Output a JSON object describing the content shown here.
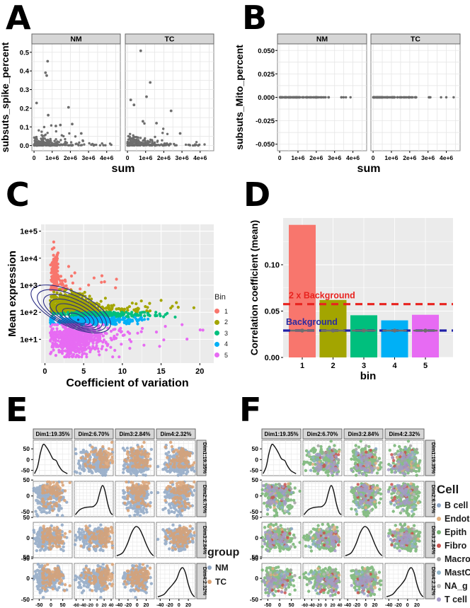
{
  "panels": {
    "A": {
      "letter": "A"
    },
    "B": {
      "letter": "B"
    },
    "C": {
      "letter": "C"
    },
    "D": {
      "letter": "D"
    },
    "E": {
      "letter": "E"
    },
    "F": {
      "letter": "F"
    }
  },
  "chart_data": {
    "A": {
      "type": "scatter",
      "facets": [
        "NM",
        "TC"
      ],
      "xlabel": "sum",
      "ylabel": "subsuts_spike_percent",
      "x_ticks": {
        "values": [
          0,
          1000000,
          2000000,
          3000000,
          4000000
        ],
        "labels": [
          "0",
          "1e+6",
          "2e+6",
          "3e+6",
          "4e+6"
        ]
      },
      "x_range": [
        -120000,
        4750000
      ],
      "y_ticks": {
        "values": [
          0,
          0.1,
          0.2,
          0.3,
          0.4,
          0.5
        ],
        "labels": [
          "0.0",
          "0.1",
          "0.2",
          "0.3",
          "0.4",
          "0.5"
        ]
      },
      "y_range": [
        -0.028,
        0.545
      ],
      "point_color": "#4a4a4a",
      "outliers": {
        "NM": [
          [
            750000,
            0.452
          ],
          [
            630000,
            0.39
          ],
          [
            700000,
            0.375
          ],
          [
            140000,
            0.228
          ],
          [
            1900000,
            0.205
          ],
          [
            780000,
            0.163
          ],
          [
            2100000,
            0.115
          ],
          [
            1450000,
            0.11
          ],
          [
            2600000,
            0.065
          ],
          [
            1200000,
            0.105
          ]
        ],
        "TC": [
          [
            730000,
            0.508
          ],
          [
            1250000,
            0.338
          ],
          [
            1050000,
            0.262
          ],
          [
            180000,
            0.245
          ],
          [
            360000,
            0.218
          ],
          [
            2400000,
            0.186
          ],
          [
            850000,
            0.13
          ],
          [
            1600000,
            0.12
          ],
          [
            2900000,
            0.065
          ]
        ]
      },
      "gen": {
        "n": 150,
        "seeds": {
          "NM": 11,
          "TC": 22
        },
        "x_scale": 900000,
        "x_max": 4400000,
        "y_exp": 0.02,
        "base_n": 80
      }
    },
    "B": {
      "type": "scatter",
      "facets": [
        "NM",
        "TC"
      ],
      "xlabel": "sum",
      "ylabel": "subsuts_Mito_percent",
      "x_ticks": {
        "values": [
          0,
          1000000,
          2000000,
          3000000,
          4000000
        ],
        "labels": [
          "0",
          "1e+6",
          "2e+6",
          "3e+6",
          "4e+6"
        ]
      },
      "x_range": [
        -120000,
        4750000
      ],
      "y_ticks": {
        "values": [
          0.05,
          0.025,
          0,
          -0.025,
          -0.05
        ],
        "labels": [
          "0.050",
          "0.025",
          "0.000",
          "-0.025",
          "-0.050"
        ]
      },
      "y_range": [
        -0.057,
        0.057
      ],
      "point_color": "#4a4a4a",
      "note": "all points lie at y = 0.000",
      "gen": {
        "n": 95,
        "seeds": {
          "NM": 33,
          "TC": 44
        },
        "x_scale": 1100000,
        "x_max": 4400000
      }
    },
    "C": {
      "type": "scatter",
      "xlabel": "Coefficient of variation",
      "ylabel": "Mean expression",
      "x_ticks": {
        "values": [
          0,
          5,
          10,
          15,
          20
        ],
        "labels": [
          "0",
          "5",
          "10",
          "15",
          "20"
        ]
      },
      "x_range": [
        -0.5,
        21.8
      ],
      "y_ticks": {
        "logs": [
          1,
          2,
          3,
          4,
          5
        ],
        "labels": [
          "1e+1",
          "1e+2",
          "1e+3",
          "1e+4",
          "1e+5"
        ]
      },
      "y_log_range": [
        0.12,
        5.25
      ],
      "legend": {
        "title": "Bin"
      },
      "bins": [
        {
          "name": "1",
          "color": "#F8766D",
          "seed": 101,
          "comps": [
            [
              150,
              1.25,
              0.25,
              3.35,
              0.45
            ],
            [
              25,
              2.2,
              0.8,
              3.0,
              0.18
            ],
            [
              12,
              5.5,
              2.2,
              3.15,
              0.25
            ]
          ],
          "ly_clip": [
            2.84,
            4.95
          ]
        },
        {
          "name": "2",
          "color": "#A3A500",
          "seed": 102,
          "comps": [
            [
              330,
              2.8,
              1.1,
              2.35,
              0.2
            ],
            [
              220,
              4.5,
              1.6,
              2.15,
              0.12
            ],
            [
              55,
              8.0,
              3.0,
              2.1,
              0.1
            ],
            [
              12,
              14.0,
              3.0,
              2.2,
              0.15
            ]
          ],
          "ly_clip": [
            2.0,
            2.84
          ]
        },
        {
          "name": "3",
          "color": "#00BF7D",
          "seed": 103,
          "comps": [
            [
              280,
              6.5,
              2.4,
              1.91,
              0.05
            ],
            [
              40,
              12.0,
              3.0,
              1.92,
              0.05
            ]
          ],
          "ly_clip": [
            1.82,
            2.0
          ]
        },
        {
          "name": "4",
          "color": "#00B0F6",
          "seed": 104,
          "comps": [
            [
              320,
              5.2,
              2.2,
              1.68,
              0.07
            ],
            [
              35,
              10.5,
              2.0,
              1.7,
              0.06
            ]
          ],
          "ly_clip": [
            1.55,
            1.82
          ]
        },
        {
          "name": "5",
          "color": "#E76BF3",
          "seed": 105,
          "comps": [
            [
              560,
              3.6,
              1.7,
              1.0,
              0.3
            ],
            [
              80,
              7.5,
              2.5,
              1.1,
              0.25
            ],
            [
              12,
              14.0,
              4.0,
              1.0,
              0.3
            ]
          ],
          "ly_clip": [
            0.35,
            1.54
          ]
        }
      ],
      "contours": {
        "color": "#2b2d84",
        "center_x": 4.3,
        "center_ly": 1.72,
        "levels": 7,
        "rotation": 25
      }
    },
    "D": {
      "type": "bar",
      "categories": [
        "1",
        "2",
        "3",
        "4",
        "5"
      ],
      "values": [
        0.143,
        0.062,
        0.0455,
        0.04,
        0.046
      ],
      "bar_colors": [
        "#F8766D",
        "#A3A500",
        "#00BF7D",
        "#00B0F6",
        "#E76BF3"
      ],
      "title": "",
      "xlabel": "bin",
      "ylabel": "Correlation coefficient (mean)",
      "y_ticks": {
        "values": [
          0,
          0.05,
          0.1
        ],
        "labels": [
          "0.00",
          "0.05",
          "0.10"
        ]
      },
      "ylim": [
        0,
        0.1504
      ],
      "hlines": [
        {
          "value": 0.0575,
          "color": "#e8231f",
          "label": "2 x Background",
          "label_color": "#e8231f"
        },
        {
          "value": 0.029,
          "color": "#2020a8",
          "label": "Background",
          "label_color": "#2b2b9e"
        }
      ],
      "mean_points": {
        "value": 0.029,
        "color": "#6e6e6e",
        "halfwidth": 16
      }
    },
    "E": {
      "type": "scatter-matrix",
      "legend": {
        "title": "group"
      },
      "dims": [
        {
          "header": "Dim1:19.35%",
          "range": [
            -75,
            90
          ],
          "ticks": [
            -50,
            0,
            50
          ],
          "tick_labels": [
            "-50",
            "0",
            "50"
          ],
          "mix": [
            [
              0.55,
              -30,
              17
            ],
            [
              0.45,
              18,
              22
            ]
          ],
          "density": [
            [
              -70,
              0.02
            ],
            [
              -57,
              0.25
            ],
            [
              -45,
              0.7
            ],
            [
              -33,
              1.0
            ],
            [
              -20,
              0.92
            ],
            [
              -5,
              0.72
            ],
            [
              8,
              0.52
            ],
            [
              22,
              0.46
            ],
            [
              32,
              0.3
            ],
            [
              48,
              0.12
            ],
            [
              70,
              0.02
            ]
          ]
        },
        {
          "header": "Dim2:6.70%",
          "range": [
            -65,
            46
          ],
          "ticks": [
            -60,
            -40,
            -20,
            0,
            20,
            40
          ],
          "tick_labels": [
            "-60",
            "-40",
            "-20",
            "0",
            "20",
            "40"
          ],
          "mix": [
            [
              0.62,
              14,
              11
            ],
            [
              0.38,
              -24,
              16
            ]
          ],
          "density": [
            [
              -62,
              0.02
            ],
            [
              -50,
              0.18
            ],
            [
              -35,
              0.26
            ],
            [
              -20,
              0.28
            ],
            [
              -10,
              0.3
            ],
            [
              0,
              0.44
            ],
            [
              8,
              0.78
            ],
            [
              15,
              1.0
            ],
            [
              22,
              0.84
            ],
            [
              30,
              0.4
            ],
            [
              38,
              0.1
            ],
            [
              44,
              0.02
            ]
          ]
        },
        {
          "header": "Dim3:2.84%",
          "range": [
            -48,
            38
          ],
          "ticks": [
            -40,
            -20,
            0,
            20
          ],
          "tick_labels": [
            "-40",
            "-20",
            "0",
            "20"
          ],
          "mix": [
            [
              0.72,
              -4,
              13
            ],
            [
              0.28,
              11,
              9
            ]
          ],
          "density": [
            [
              -45,
              0.02
            ],
            [
              -32,
              0.12
            ],
            [
              -22,
              0.4
            ],
            [
              -12,
              0.8
            ],
            [
              -3,
              1.0
            ],
            [
              5,
              0.93
            ],
            [
              13,
              0.68
            ],
            [
              21,
              0.38
            ],
            [
              29,
              0.14
            ],
            [
              36,
              0.02
            ]
          ]
        },
        {
          "header": "Dim4:2.32%",
          "range": [
            -48,
            35
          ],
          "ticks": [
            -40,
            -20,
            0,
            20
          ],
          "tick_labels": [
            "-40",
            "-20",
            "0",
            "20"
          ],
          "mix": [
            [
              0.68,
              7,
              9
            ],
            [
              0.32,
              -14,
              11
            ]
          ],
          "density": [
            [
              -45,
              0.02
            ],
            [
              -32,
              0.1
            ],
            [
              -22,
              0.28
            ],
            [
              -13,
              0.44
            ],
            [
              -5,
              0.62
            ],
            [
              2,
              0.9
            ],
            [
              8,
              1.0
            ],
            [
              14,
              0.82
            ],
            [
              20,
              0.44
            ],
            [
              27,
              0.14
            ],
            [
              33,
              0.02
            ]
          ]
        }
      ],
      "series": [
        {
          "name": "NM",
          "color": "#8ea6c4",
          "p": 0.72,
          "off": [
            -5,
            -3,
            0,
            0
          ],
          "sds": 1
        },
        {
          "name": "TC",
          "color": "#daa172",
          "p": 0.28,
          "off": [
            18,
            10,
            3,
            3
          ],
          "sds": 1
        }
      ],
      "n": 330,
      "seed": 777
    },
    "F": {
      "type": "scatter-matrix",
      "legend": {
        "title": "Cell"
      },
      "series": [
        {
          "name": "B cell",
          "color": "#8aa3c4",
          "p": 0.05,
          "off": [
            -8,
            8,
            0,
            -10
          ],
          "sds": 0.8
        },
        {
          "name": "Endot",
          "color": "#dfae7d",
          "p": 0.03,
          "off": [
            0,
            0,
            0,
            0
          ],
          "sds": 1
        },
        {
          "name": "Epith",
          "color": "#74b371",
          "p": 0.7,
          "off": [
            0,
            0,
            0,
            0
          ],
          "sds": 1
        },
        {
          "name": "Fibro",
          "color": "#c9524e",
          "p": 0.04,
          "off": [
            0,
            14,
            0,
            -14
          ],
          "sds": 0.6
        },
        {
          "name": "Macro",
          "color": "#a3a3a3",
          "p": 0.02,
          "off": [
            0,
            0,
            0,
            0
          ],
          "sds": 1
        },
        {
          "name": "MastC",
          "color": "#90b4c9",
          "p": 0.013,
          "off": [
            0,
            0,
            0,
            0
          ],
          "sds": 1
        },
        {
          "name": "NA_g",
          "color": "#b9b9b9",
          "p": 0.012,
          "off": [
            0,
            0,
            0,
            0
          ],
          "sds": 1
        },
        {
          "name": "T cell",
          "color": "#a59bc8",
          "p": 0.135,
          "off": [
            -8,
            7,
            -3,
            -12
          ],
          "sds": 0.75
        }
      ],
      "n": 340,
      "seed": 888
    }
  },
  "style": {
    "panel_bg_gray": "#ebebeb",
    "strip_fill": "#d6d6d6",
    "strip_stroke": "#666666",
    "grid_light": "#e6e6e6",
    "cell_border": "#888888"
  }
}
